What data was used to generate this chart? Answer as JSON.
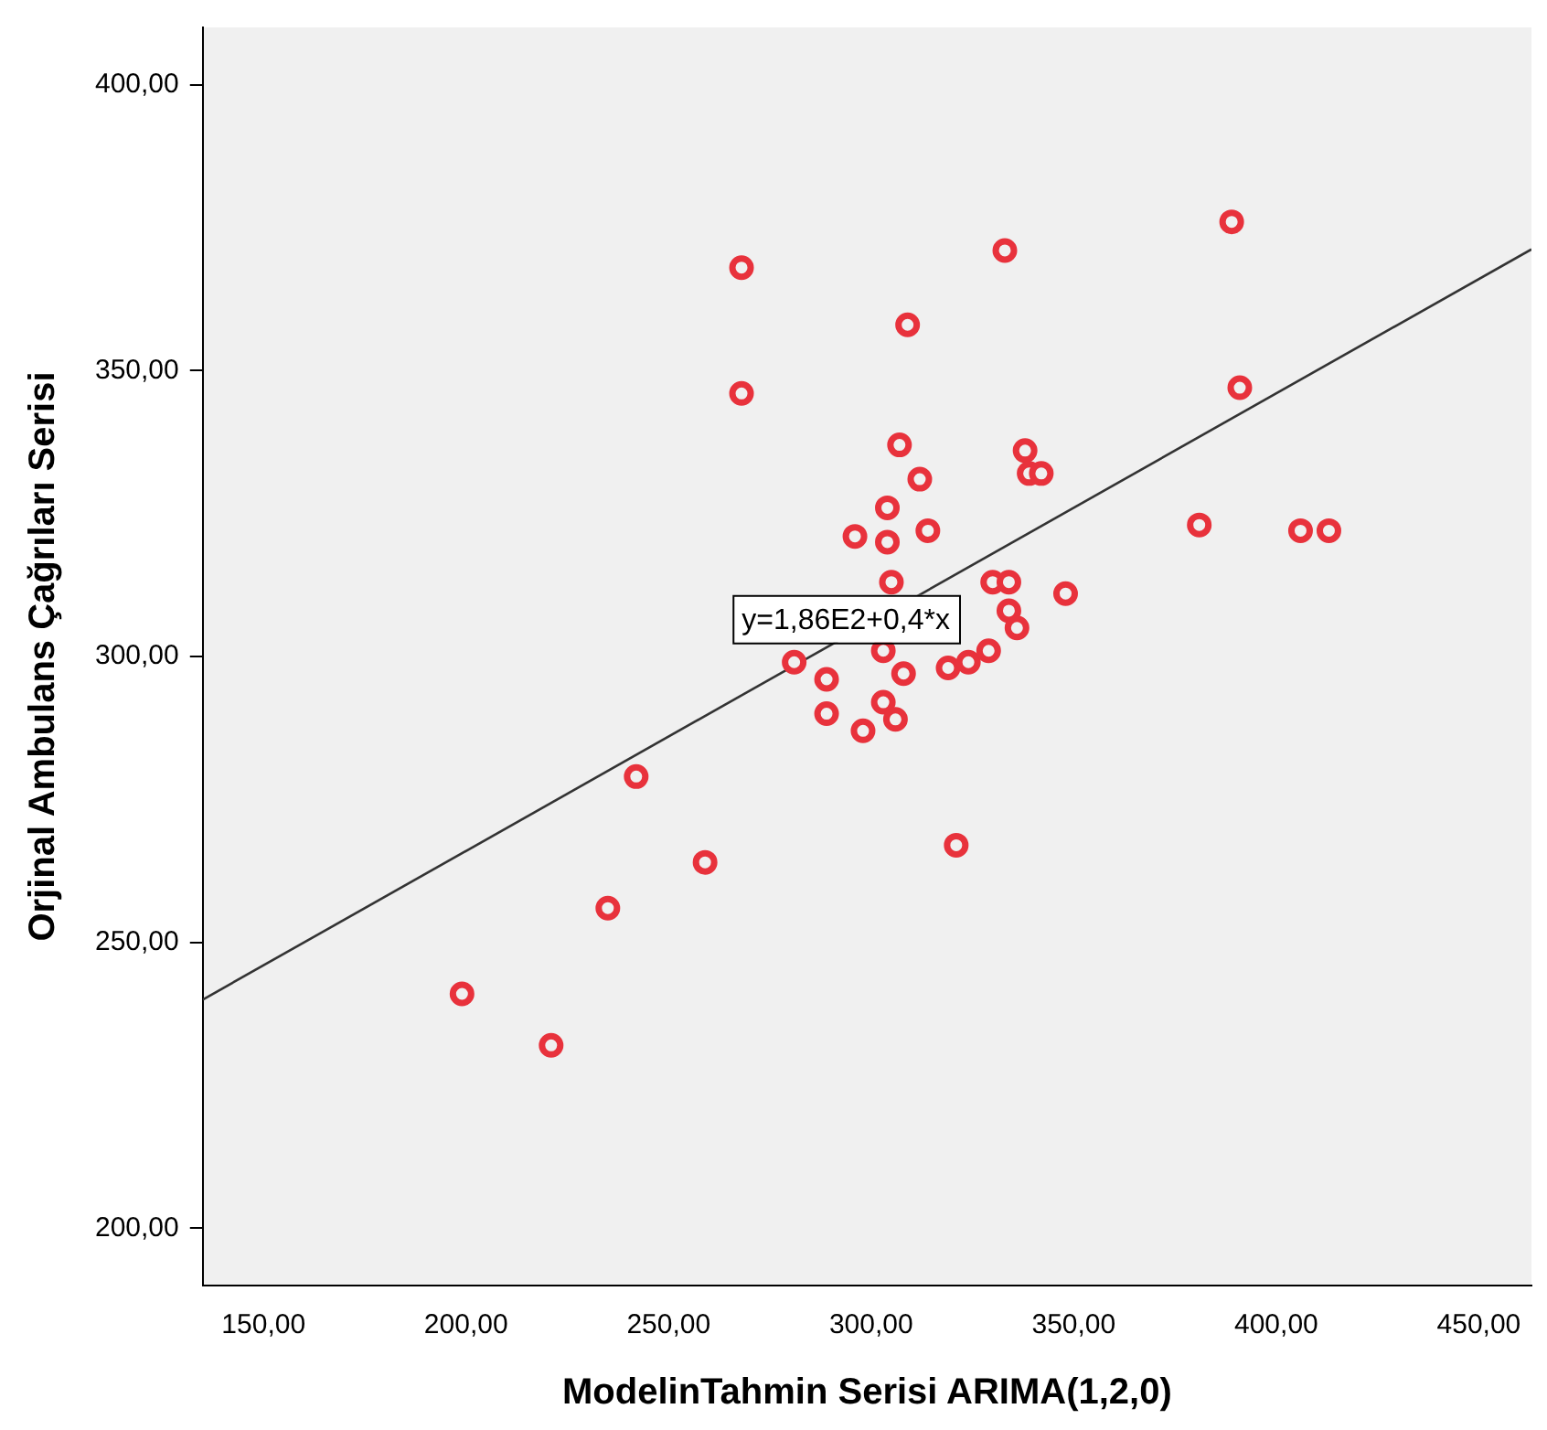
{
  "chart_data": {
    "type": "scatter",
    "xlabel": "ModelinTahmin Serisi ARIMA(1,2,0)",
    "ylabel": "Orjinal Ambulans Çağrıları Serisi",
    "xlim": [
      135,
      463
    ],
    "ylim": [
      190,
      410
    ],
    "xticks": [
      {
        "value": 150,
        "label": "150,00"
      },
      {
        "value": 200,
        "label": "200,00"
      },
      {
        "value": 250,
        "label": "250,00"
      },
      {
        "value": 300,
        "label": "300,00"
      },
      {
        "value": 350,
        "label": "350,00"
      },
      {
        "value": 400,
        "label": "400,00"
      },
      {
        "value": 450,
        "label": "450,00"
      }
    ],
    "yticks": [
      {
        "value": 200,
        "label": "200,00"
      },
      {
        "value": 250,
        "label": "250,00"
      },
      {
        "value": 300,
        "label": "300,00"
      },
      {
        "value": 350,
        "label": "350,00"
      },
      {
        "value": 400,
        "label": "400,00"
      }
    ],
    "grid": false,
    "legend": false,
    "marker": "circle",
    "series": [
      {
        "color": "#e8323c",
        "x": [
          199,
          221,
          235,
          242,
          259,
          268,
          268,
          281,
          289,
          289,
          296,
          298,
          303,
          306,
          303,
          304,
          304,
          305,
          307,
          308,
          309,
          312,
          314,
          319,
          321,
          324,
          329,
          330,
          334,
          334,
          336,
          333,
          338,
          339,
          342,
          348,
          381,
          389,
          391,
          406,
          413
        ],
        "values": [
          241,
          232,
          256,
          279,
          264,
          368,
          346,
          299,
          296,
          290,
          321,
          287,
          292,
          289,
          301,
          320,
          326,
          313,
          337,
          297,
          358,
          331,
          322,
          298,
          267,
          299,
          301,
          313,
          313,
          308,
          305,
          371,
          336,
          332,
          332,
          311,
          323,
          376,
          347,
          322,
          322
        ]
      },
      {
        "type": "line",
        "color": "#333333",
        "line_style": "solid",
        "marker": "none",
        "x": [
          135,
          463
        ],
        "values": [
          240,
          371.2
        ]
      }
    ],
    "annotations": [
      "y=1,86E2+0,4*x"
    ]
  }
}
